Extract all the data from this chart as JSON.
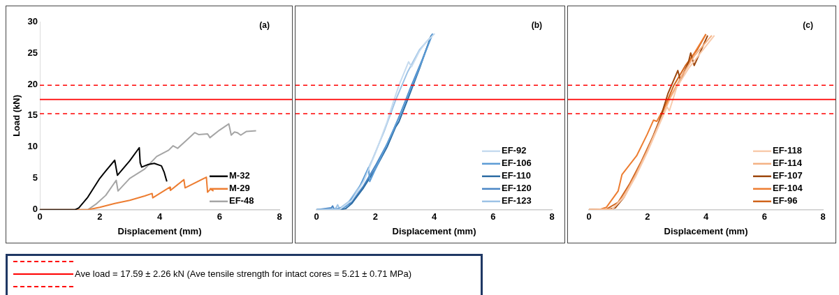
{
  "chart_data": [
    {
      "type": "line",
      "title": "(a)",
      "annotations": [
        "Ave load = 17.59 ± 2.26 kN (Ave tensile strength for intact cores = 5.21 ± 0.71 MPa)"
      ],
      "xlabel": "Displacement (mm)",
      "ylabel": "Load (kN)",
      "xlim": [
        0,
        8
      ],
      "xticks": [
        0,
        2,
        4,
        6,
        8
      ],
      "ylim": [
        0,
        30
      ],
      "yticks": [
        0,
        5,
        10,
        15,
        20,
        25,
        30
      ],
      "grid": false,
      "legend": "bottom right",
      "marker": "none",
      "line_style": "solid",
      "ref_lines": [
        {
          "axis": "y",
          "value": 17.59,
          "color": "#ff0000",
          "line_style": "solid"
        },
        {
          "axis": "y",
          "value": 19.85,
          "color": "#ff0000",
          "line_style": "dashed"
        },
        {
          "axis": "y",
          "value": 15.33,
          "color": "#ff0000",
          "line_style": "dashed"
        }
      ],
      "series": [
        {
          "name": "M-32",
          "color": "#000000",
          "x": [
            0,
            1.17,
            1.3,
            1.6,
            2.0,
            2.2,
            2.5,
            2.59,
            3.0,
            3.32,
            3.35,
            3.4,
            3.6,
            3.82,
            4.06,
            4.15,
            4.24
          ],
          "values": [
            0,
            0,
            0.3,
            2,
            5,
            6.2,
            7.9,
            5.5,
            7.8,
            9.9,
            7.5,
            6.8,
            7.2,
            7.4,
            7.0,
            6.0,
            4.5
          ]
        },
        {
          "name": "M-29",
          "color": "#ed7d31",
          "x": [
            0,
            1.6,
            2.0,
            2.5,
            3.0,
            3.5,
            3.75,
            3.77,
            4.34,
            4.36,
            4.81,
            4.85,
            5.56,
            5.6,
            5.7,
            5.8
          ],
          "values": [
            0,
            0,
            0.4,
            1.0,
            1.5,
            2.2,
            2.6,
            1.9,
            3.6,
            3.1,
            4.8,
            3.5,
            5.2,
            2.8,
            3.3,
            3.0
          ]
        },
        {
          "name": "EF-48",
          "color": "#a5a5a5",
          "x": [
            0,
            1.6,
            1.9,
            2.2,
            2.55,
            2.61,
            3.0,
            3.5,
            3.9,
            4.3,
            4.45,
            4.6,
            4.9,
            5.17,
            5.3,
            5.6,
            5.68,
            6.0,
            6.31,
            6.39,
            6.5,
            6.59,
            6.71,
            6.9,
            7.22
          ],
          "values": [
            0,
            0,
            1.0,
            2.3,
            4.7,
            3.0,
            5.0,
            6.5,
            8.5,
            9.5,
            10.2,
            9.8,
            11.1,
            12.3,
            12.0,
            12.1,
            11.5,
            12.7,
            13.7,
            11.9,
            12.4,
            12.3,
            11.9,
            12.5,
            12.6
          ]
        }
      ]
    },
    {
      "type": "line",
      "title": "(b)",
      "xlabel": "Displacement (mm)",
      "xlim": [
        0,
        8
      ],
      "xticks": [
        0,
        2,
        4,
        6,
        8
      ],
      "ylim": [
        0,
        30
      ],
      "yticks": [
        0,
        5,
        10,
        15,
        20,
        25,
        30
      ],
      "tick_labels": "x",
      "grid": false,
      "legend": "bottom right",
      "marker": "none",
      "line_style": "solid",
      "ref_lines": [
        {
          "axis": "y",
          "value": 17.59,
          "color": "#ff0000",
          "line_style": "solid"
        },
        {
          "axis": "y",
          "value": 19.85,
          "color": "#ff0000",
          "line_style": "dashed"
        },
        {
          "axis": "y",
          "value": 15.33,
          "color": "#ff0000",
          "line_style": "dashed"
        }
      ],
      "series": [
        {
          "name": "EF-92",
          "color": "#c6dbef",
          "x": [
            0,
            0.8,
            1.2,
            1.6,
            2.0,
            2.4,
            2.6,
            2.8,
            3.13,
            3.23,
            3.5,
            3.7,
            4.02
          ],
          "values": [
            0,
            0.1,
            1.5,
            4.5,
            9,
            14,
            17,
            19.8,
            23.6,
            22.8,
            25.3,
            26.6,
            28.1
          ]
        },
        {
          "name": "EF-106",
          "color": "#5b9bd5",
          "x": [
            0,
            0.7,
            1.0,
            1.4,
            1.77,
            1.81,
            2.2,
            2.6,
            3.0,
            3.4,
            3.95
          ],
          "values": [
            0,
            0.1,
            0.5,
            3,
            6.7,
            4.5,
            8.5,
            12.5,
            17,
            21.5,
            28.1
          ]
        },
        {
          "name": "EF-110",
          "color": "#2e6da4",
          "x": [
            0,
            0.8,
            1.0,
            1.2,
            1.6,
            2.0,
            2.4,
            2.69,
            2.8,
            3.1,
            3.5,
            3.9
          ],
          "values": [
            0,
            0,
            0.2,
            1,
            3.5,
            6.5,
            10,
            13.2,
            14,
            17.6,
            22.5,
            27.8
          ]
        },
        {
          "name": "EF-120",
          "color": "#4a86c5",
          "x": [
            0,
            0.5,
            0.55,
            0.6,
            0.9,
            1.2,
            1.6,
            2.0,
            2.4,
            2.8,
            3.2,
            3.6,
            3.93
          ],
          "values": [
            0,
            0.3,
            0.6,
            0.1,
            0.3,
            1.2,
            3.8,
            7,
            10.5,
            14.7,
            19.5,
            24,
            28
          ]
        },
        {
          "name": "EF-123",
          "color": "#9dc3e6",
          "x": [
            0,
            0.65,
            0.72,
            0.78,
            1.1,
            1.5,
            1.9,
            2.3,
            2.7,
            3.1,
            3.5,
            3.97
          ],
          "values": [
            0,
            0.2,
            0.8,
            0.2,
            1.3,
            4,
            8,
            12.5,
            17.6,
            22,
            25.5,
            28
          ]
        }
      ]
    },
    {
      "type": "line",
      "title": "(c)",
      "xlabel": "Displacement (mm)",
      "xlim": [
        0,
        8
      ],
      "xticks": [
        0,
        2,
        4,
        6,
        8
      ],
      "ylim": [
        0,
        30
      ],
      "yticks": [
        0,
        5,
        10,
        15,
        20,
        25,
        30
      ],
      "tick_labels": "x",
      "grid": false,
      "legend": "bottom right",
      "marker": "none",
      "line_style": "solid",
      "ref_lines": [
        {
          "axis": "y",
          "value": 17.59,
          "color": "#ff0000",
          "line_style": "solid"
        },
        {
          "axis": "y",
          "value": 19.85,
          "color": "#ff0000",
          "line_style": "dashed"
        },
        {
          "axis": "y",
          "value": 15.33,
          "color": "#ff0000",
          "line_style": "dashed"
        }
      ],
      "series": [
        {
          "name": "EF-118",
          "color": "#f8cbad",
          "x": [
            0,
            0.8,
            1.2,
            1.6,
            2.0,
            2.4,
            2.67,
            2.75,
            3.0,
            3.4,
            3.9,
            4.29
          ],
          "values": [
            0,
            0.1,
            2,
            5.3,
            9.2,
            13.5,
            16.4,
            15.8,
            19.5,
            22.5,
            25.5,
            27.8
          ]
        },
        {
          "name": "EF-114",
          "color": "#f4b183",
          "x": [
            0,
            0.8,
            1.2,
            1.6,
            2.0,
            2.4,
            2.8,
            3.2,
            3.6,
            4.2
          ],
          "values": [
            0,
            0.1,
            2.2,
            5.6,
            9.5,
            13.8,
            18,
            21.5,
            24.5,
            27.8
          ]
        },
        {
          "name": "EF-107",
          "color": "#9e480e",
          "x": [
            0,
            0.6,
            0.9,
            1.2,
            1.6,
            2.0,
            2.4,
            2.7,
            3.04,
            3.13,
            3.4,
            3.48,
            3.6,
            4.06
          ],
          "values": [
            0,
            0,
            0.3,
            2,
            5.5,
            9.5,
            14,
            18.5,
            22.2,
            20.6,
            23.5,
            25,
            23,
            27.8
          ]
        },
        {
          "name": "EF-104",
          "color": "#ed7d31",
          "x": [
            0,
            0.4,
            0.6,
            1.0,
            1.13,
            1.63,
            1.99,
            2.21,
            2.32,
            2.6,
            3.0,
            3.5,
            4.0
          ],
          "values": [
            0,
            0.1,
            0.4,
            3,
            5.6,
            8.6,
            12,
            14.3,
            14.1,
            16.5,
            19.8,
            24.2,
            28
          ]
        },
        {
          "name": "EF-96",
          "color": "#d0641c",
          "x": [
            0,
            0.6,
            1.0,
            1.4,
            1.8,
            2.2,
            2.6,
            2.9,
            3.3,
            3.7,
            4.0
          ],
          "values": [
            0,
            0.1,
            1.2,
            4.2,
            7.8,
            11.8,
            16.5,
            19.8,
            23,
            25.5,
            28
          ]
        }
      ]
    }
  ]
}
